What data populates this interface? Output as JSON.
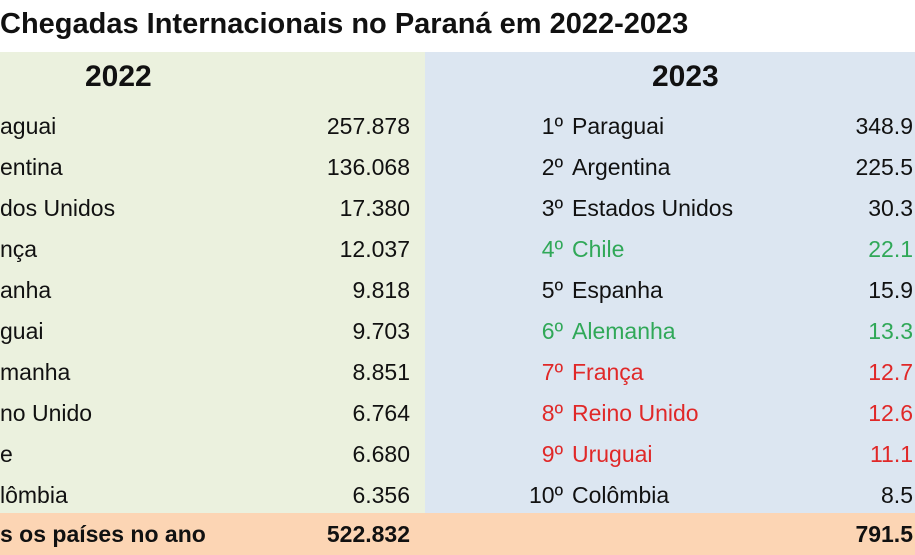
{
  "title": "Chegadas Internacionais no Paraná em 2022-2023",
  "table": {
    "headers": [
      "2022",
      "2023"
    ],
    "rows_2022": [
      [
        "aguai",
        "257.878"
      ],
      [
        "entina",
        "136.068"
      ],
      [
        "dos Unidos",
        "17.380"
      ],
      [
        "nça",
        "12.037"
      ],
      [
        "anha",
        "9.818"
      ],
      [
        "guai",
        "9.703"
      ],
      [
        "manha",
        "8.851"
      ],
      [
        "no Unido",
        "6.764"
      ],
      [
        "e",
        "6.680"
      ],
      [
        "lômbia",
        "6.356"
      ]
    ],
    "rows_2023": [
      [
        "1º",
        "Paraguai",
        "348.9"
      ],
      [
        "2º",
        "Argentina",
        "225.5"
      ],
      [
        "3º",
        "Estados Unidos",
        "30.3"
      ],
      [
        "4º",
        "Chile",
        "22.1"
      ],
      [
        "5º",
        "Espanha",
        "15.9"
      ],
      [
        "6º",
        "Alemanha",
        "13.3"
      ],
      [
        "7º",
        "França",
        "12.7"
      ],
      [
        "8º",
        "Reino Unido",
        "12.6"
      ],
      [
        "9º",
        "Uruguai",
        "11.1"
      ],
      [
        "10º",
        "Colômbia",
        "8.5"
      ]
    ],
    "total": {
      "label": "s os países no ano",
      "value_2022": "522.832",
      "value_2023": "791.5"
    }
  }
}
